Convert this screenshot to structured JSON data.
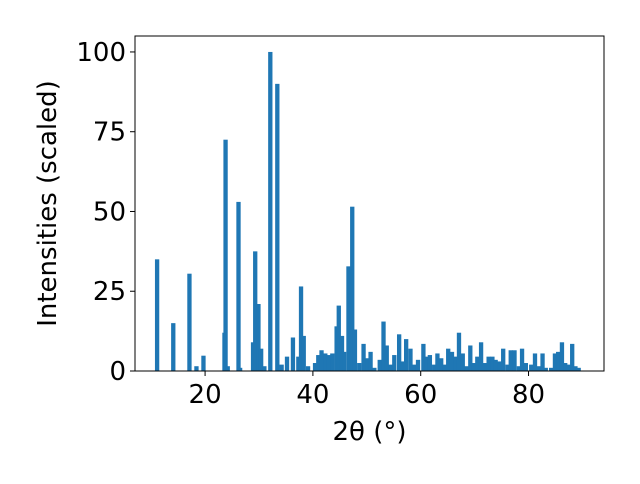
{
  "chart_data": {
    "type": "bar",
    "title": "",
    "xlabel": "2θ (°)",
    "ylabel": "Intensities (scaled)",
    "xlim": [
      7,
      94
    ],
    "ylim": [
      0,
      105
    ],
    "xticks": [
      20,
      40,
      60,
      80
    ],
    "yticks": [
      0,
      25,
      50,
      75,
      100
    ],
    "grid": false,
    "legend": "none",
    "bar_color": "#1f77b4",
    "bar_width": 0.8,
    "series": [
      {
        "x": [
          11.1,
          14.1,
          17.1,
          18.4,
          19.7,
          23.6,
          23.8,
          24.2,
          26.2,
          26.5,
          28.9,
          29.3,
          29.9,
          30.4,
          31.0,
          32.1,
          33.4,
          34.2,
          35.2,
          36.3,
          37.3,
          37.8,
          38.3,
          39.1,
          40.4,
          41.0,
          41.6,
          42.3,
          43.0,
          43.6,
          44.4,
          44.8,
          45.4,
          45.8,
          46.6,
          47.3,
          47.8,
          48.6,
          49.4,
          50.1,
          50.7,
          51.4,
          52.4,
          53.1,
          53.7,
          54.4,
          55.1,
          56.0,
          56.7,
          57.3,
          58.1,
          58.8,
          59.5,
          60.5,
          61.1,
          61.7,
          62.5,
          63.1,
          63.8,
          64.4,
          65.1,
          65.8,
          66.5,
          67.1,
          67.8,
          68.5,
          69.2,
          69.8,
          70.5,
          71.2,
          71.9,
          72.6,
          73.3,
          73.9,
          74.6,
          75.3,
          76.1,
          76.7,
          77.4,
          78.2,
          78.8,
          79.5,
          80.5,
          81.2,
          81.9,
          82.6,
          83.2,
          84.2,
          84.9,
          85.5,
          86.2,
          86.8,
          87.4,
          88.1,
          88.7,
          89.3
        ],
        "values": [
          35,
          15,
          30.5,
          1.5,
          4.8,
          12,
          72.5,
          1.5,
          53,
          1,
          9,
          37.5,
          21,
          7,
          1.5,
          100,
          90,
          2,
          4.5,
          10.5,
          4.5,
          26.5,
          11,
          1.5,
          2.5,
          5,
          6.5,
          5.5,
          5,
          5.5,
          14,
          20.5,
          11,
          6,
          32.8,
          51.5,
          13,
          2.5,
          8.5,
          4,
          6,
          1,
          3.5,
          15.5,
          8,
          2,
          5,
          11.5,
          3,
          10,
          7,
          2,
          3.5,
          8.5,
          4.5,
          5,
          2,
          5.5,
          4,
          2,
          7,
          6,
          4.5,
          12,
          5.5,
          1.5,
          8,
          2.5,
          4.5,
          9,
          2.5,
          4.5,
          4.5,
          3.5,
          3,
          7,
          2,
          6.5,
          6.5,
          1.5,
          7,
          2.5,
          2,
          5.5,
          1.5,
          5.5,
          1,
          1,
          5.5,
          6,
          9,
          2.5,
          2,
          8.5,
          1.5,
          1
        ]
      }
    ]
  }
}
